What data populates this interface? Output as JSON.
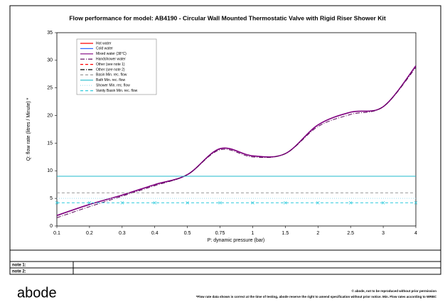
{
  "chart_data": {
    "type": "line",
    "title": "Flow performance for model: AB4190 - Circular Wall Mounted Thermostatic Valve with Rigid Riser Shower Kit",
    "x_label": "P: dynamic pressure (bar)",
    "y_label": "Q: flow rate (litres / Minute) *",
    "categories": [
      "0.1",
      "0.2",
      "0.3",
      "0.4",
      "0.5",
      "0.75",
      "1",
      "1.5",
      "2",
      "2.5",
      "3",
      "4"
    ],
    "ylim": [
      0,
      35
    ],
    "yticks": [
      0,
      5,
      10,
      15,
      20,
      25,
      30,
      35
    ],
    "series": [
      {
        "name": "Hot water",
        "color": "#ff0000",
        "line_style": "solid",
        "values": [
          null,
          null,
          null,
          null,
          null,
          null,
          null,
          null,
          null,
          null,
          null,
          null
        ]
      },
      {
        "name": "Cold water",
        "color": "#3366ff",
        "line_style": "solid",
        "values": [
          null,
          null,
          null,
          null,
          null,
          null,
          null,
          null,
          null,
          null,
          null,
          null
        ]
      },
      {
        "name": "Mixed water (38°C)",
        "color": "#800080",
        "line_style": "solid",
        "values": [
          1.9,
          3.9,
          5.6,
          7.5,
          9.3,
          14,
          12.7,
          13.1,
          18.3,
          20.6,
          21.6,
          29
        ]
      },
      {
        "name": "Handshower water",
        "color": "#5a005a",
        "line_style": "dashdot",
        "values": [
          1.5,
          3.5,
          5.4,
          7.3,
          9.3,
          13.8,
          12.5,
          13.1,
          18,
          20.2,
          21.6,
          28.7
        ]
      },
      {
        "name": "Other (see note 1)",
        "color": "#ff0000",
        "line_style": "dashed",
        "values": [
          null,
          null,
          null,
          null,
          null,
          null,
          null,
          null,
          null,
          null,
          null,
          null
        ]
      },
      {
        "name": "Other (see note 2)",
        "color": "#000000",
        "line_style": "dashdot",
        "values": [
          null,
          null,
          null,
          null,
          null,
          null,
          null,
          null,
          null,
          null,
          null,
          null
        ]
      },
      {
        "name": "Basin Min. rec. flow",
        "color": "#999999",
        "line_style": "dashed",
        "values": [
          6,
          6,
          6,
          6,
          6,
          6,
          6,
          6,
          6,
          6,
          6,
          6
        ]
      },
      {
        "name": "Bath Min. rec. flow",
        "color": "#22bbcc",
        "line_style": "solid",
        "values": [
          9,
          9,
          9,
          9,
          9,
          9,
          9,
          9,
          9,
          9,
          9,
          9
        ]
      },
      {
        "name": "Shower Min. rec. flow",
        "color": "#99ddee",
        "line_style": "dotted",
        "values": [
          5,
          5,
          5,
          5,
          5,
          5,
          5,
          5,
          5,
          5,
          5,
          5
        ]
      },
      {
        "name": "Vanity Basin Min. rec. flow",
        "color": "#33ccdd",
        "line_style": "dashed",
        "marker": "x",
        "values": [
          4.2,
          4.2,
          4.2,
          4.2,
          4.2,
          4.2,
          4.2,
          4.2,
          4.2,
          4.2,
          4.2,
          4.2
        ]
      }
    ]
  },
  "notes": {
    "rows": [
      "note 1:",
      "note 2:"
    ]
  },
  "footer": {
    "logo": "abode",
    "copyright": "© abode, not to be reproduced without prior permission",
    "disclaimer": "*Flow rate data shown is correct at the time of testing, abode reserve the right to amend specification without prior notice. Min. Flow rates according to WRBC"
  }
}
